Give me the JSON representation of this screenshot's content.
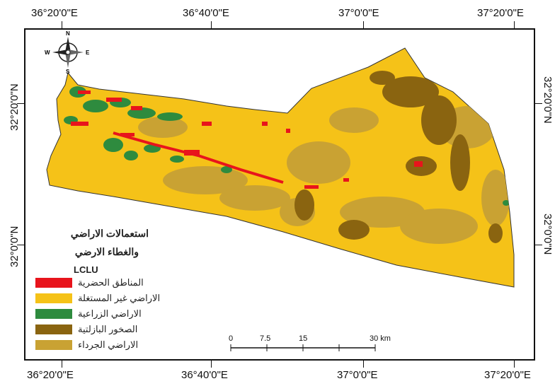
{
  "graticule": {
    "top_longitudes": [
      "36°20'0\"E",
      "36°40'0\"E",
      "37°0'0\"E",
      "37°20'0\"E"
    ],
    "bottom_longitudes": [
      "36°20'0\"E",
      "36°40'0\"E",
      "37°0'0\"E",
      "37°20'0\"E"
    ],
    "left_latitudes": [
      "32°20'0\"N",
      "32°0'0\"N"
    ],
    "right_latitudes": [
      "32°20'0\"N",
      "32°0'0\"N"
    ]
  },
  "north_arrow": {
    "n": "N",
    "s": "S",
    "e": "E",
    "w": "W"
  },
  "legend": {
    "title_line1": "استعمالات الاراضي",
    "title_line2": "والغطاء الارضي",
    "heading": "LCLU",
    "items": [
      {
        "label": "المناطق الحضرية",
        "color": "#e8141c"
      },
      {
        "label": "الاراضي غير المستغلة",
        "color": "#f5c218"
      },
      {
        "label": "الاراضي الزراعية",
        "color": "#2e8b3e"
      },
      {
        "label": "الصخور البازلتية",
        "color": "#8a6410"
      },
      {
        "label": "الاراضي الجرداء",
        "color": "#c9a233"
      }
    ]
  },
  "scale_bar": {
    "labels": [
      "0",
      "7.5",
      "15",
      "30 km"
    ]
  },
  "colors": {
    "urban": "#e8141c",
    "unused": "#f5c218",
    "agricultural": "#2e8b3e",
    "basalt": "#8a6410",
    "barren": "#c9a233",
    "frame": "#111111"
  }
}
